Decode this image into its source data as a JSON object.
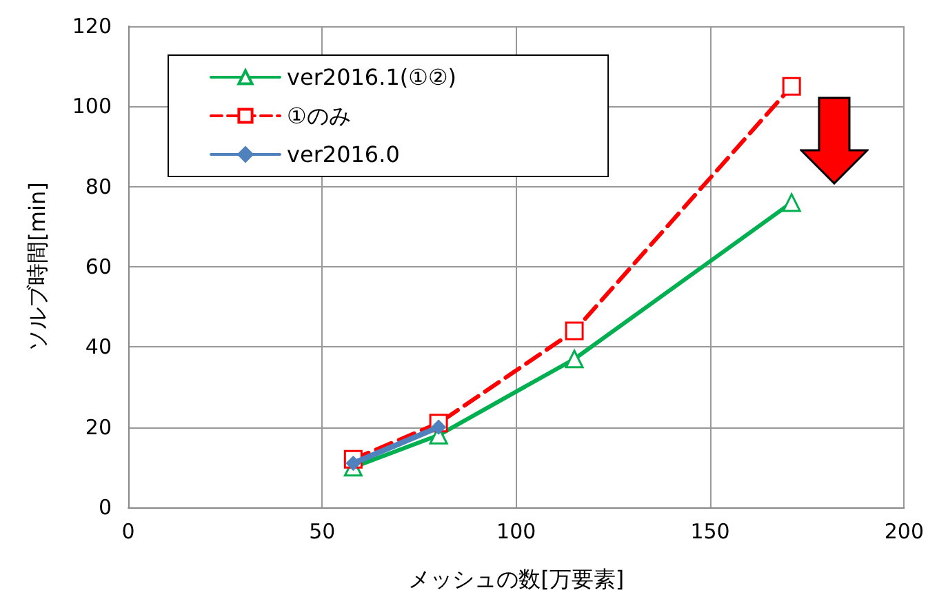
{
  "chart_data": {
    "type": "line",
    "xlabel": "メッシュの数[万要素]",
    "ylabel": "ソルブ時間[min]",
    "x": [
      58,
      80,
      115,
      171
    ],
    "series": [
      {
        "name": "ver2016.1(①②)",
        "color": "#00b050",
        "values": [
          10,
          18,
          37,
          76
        ],
        "marker": "triangle",
        "line_style": "solid"
      },
      {
        "name": "①のみ",
        "color": "#ff0000",
        "values": [
          12,
          21,
          44,
          105
        ],
        "marker": "square",
        "line_style": "dashed"
      },
      {
        "name": "ver2016.0",
        "color": "#4f81bd",
        "values": [
          11,
          20,
          null,
          null
        ],
        "marker": "diamond",
        "line_style": "solid"
      }
    ],
    "xlim": [
      0,
      200
    ],
    "xticks": [
      0,
      50,
      100,
      150,
      200
    ],
    "ylim": [
      0,
      120
    ],
    "yticks": [
      0,
      20,
      40,
      60,
      80,
      100,
      120
    ],
    "grid": true,
    "legend": "top left"
  }
}
